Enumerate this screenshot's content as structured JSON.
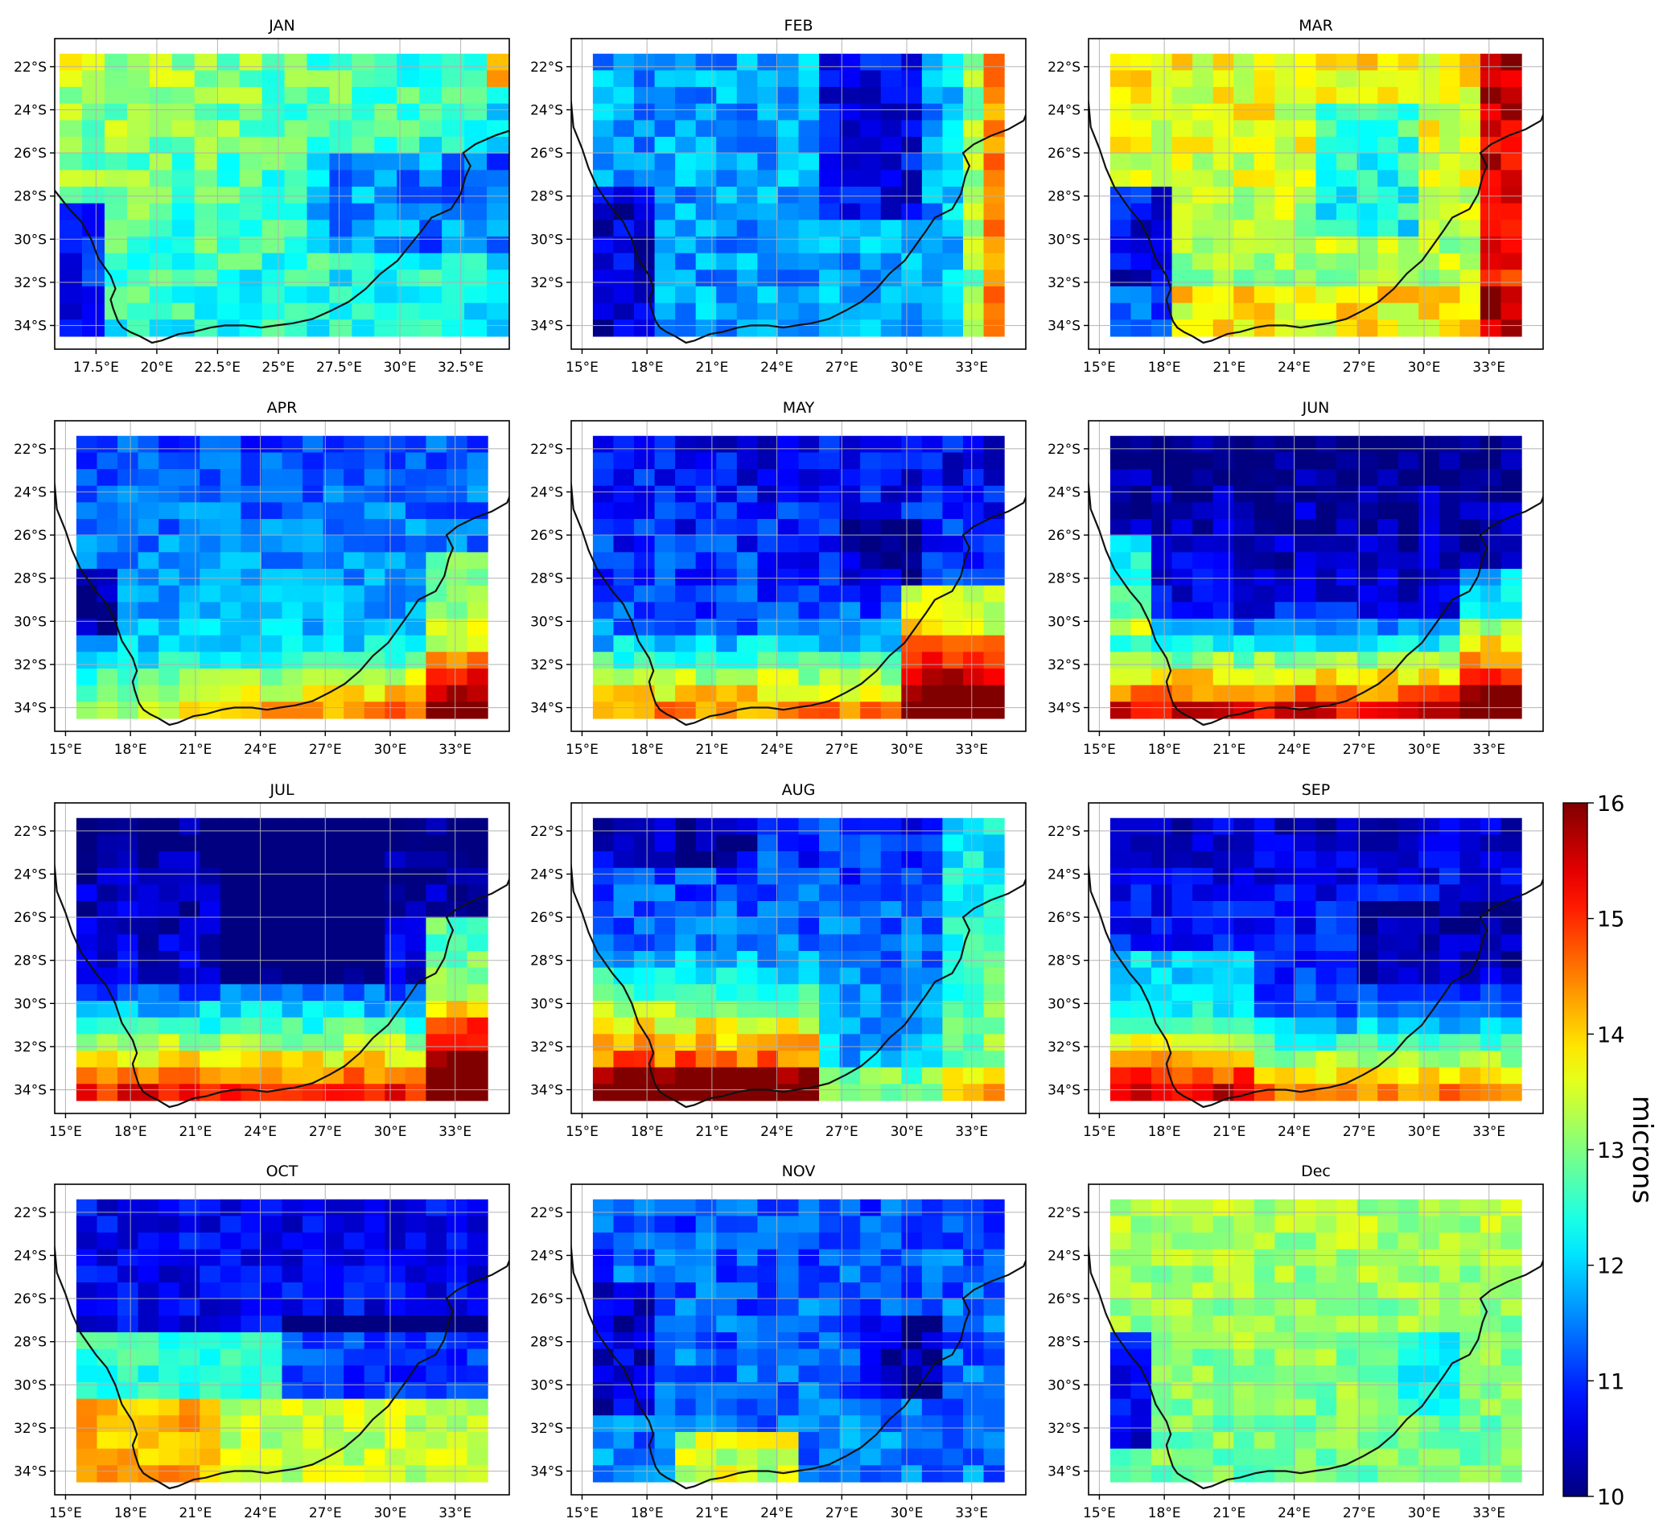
{
  "chart_data": {
    "type": "heatmap",
    "colorbar": {
      "label": "microns",
      "min": 10,
      "max": 16,
      "ticks": [
        10,
        11,
        12,
        13,
        14,
        15,
        16
      ],
      "colormap": "jet"
    },
    "grid_on": true,
    "panels": [
      {
        "title": "JAN",
        "xlim": [
          15.8,
          34.5
        ],
        "ylim": [
          -35.1,
          -20.7
        ],
        "xticks": [
          "17.5°E",
          "20°E",
          "22.5°E",
          "25°E",
          "27.5°E",
          "30°E",
          "32.5°E"
        ],
        "yticks": [
          "22°S",
          "24°S",
          "26°S",
          "28°S",
          "30°S",
          "32°S",
          "34°S"
        ],
        "pattern": "jan"
      },
      {
        "title": "FEB",
        "xlim": [
          14.5,
          35.5
        ],
        "ylim": [
          -35.1,
          -20.7
        ],
        "xticks": [
          "15°E",
          "18°E",
          "21°E",
          "24°E",
          "27°E",
          "30°E",
          "33°E"
        ],
        "yticks": [
          "22°S",
          "24°S",
          "26°S",
          "28°S",
          "30°S",
          "32°S",
          "34°S"
        ],
        "pattern": "feb"
      },
      {
        "title": "MAR",
        "xlim": [
          14.5,
          35.5
        ],
        "ylim": [
          -35.1,
          -20.7
        ],
        "xticks": [
          "15°E",
          "18°E",
          "21°E",
          "24°E",
          "27°E",
          "30°E",
          "33°E"
        ],
        "yticks": [
          "22°S",
          "24°S",
          "26°S",
          "28°S",
          "30°S",
          "32°S",
          "34°S"
        ],
        "pattern": "mar"
      },
      {
        "title": "APR",
        "xlim": [
          14.5,
          35.5
        ],
        "ylim": [
          -35.1,
          -20.7
        ],
        "xticks": [
          "15°E",
          "18°E",
          "21°E",
          "24°E",
          "27°E",
          "30°E",
          "33°E"
        ],
        "yticks": [
          "22°S",
          "24°S",
          "26°S",
          "28°S",
          "30°S",
          "32°S",
          "34°S"
        ],
        "pattern": "apr"
      },
      {
        "title": "MAY",
        "xlim": [
          14.5,
          35.5
        ],
        "ylim": [
          -35.1,
          -20.7
        ],
        "xticks": [
          "15°E",
          "18°E",
          "21°E",
          "24°E",
          "27°E",
          "30°E",
          "33°E"
        ],
        "yticks": [
          "22°S",
          "24°S",
          "26°S",
          "28°S",
          "30°S",
          "32°S",
          "34°S"
        ],
        "pattern": "may"
      },
      {
        "title": "JUN",
        "xlim": [
          14.5,
          35.5
        ],
        "ylim": [
          -35.1,
          -20.7
        ],
        "xticks": [
          "15°E",
          "18°E",
          "21°E",
          "24°E",
          "27°E",
          "30°E",
          "33°E"
        ],
        "yticks": [
          "22°S",
          "24°S",
          "26°S",
          "28°S",
          "30°S",
          "32°S",
          "34°S"
        ],
        "pattern": "jun"
      },
      {
        "title": "JUL",
        "xlim": [
          14.5,
          35.5
        ],
        "ylim": [
          -35.1,
          -20.7
        ],
        "xticks": [
          "15°E",
          "18°E",
          "21°E",
          "24°E",
          "27°E",
          "30°E",
          "33°E"
        ],
        "yticks": [
          "22°S",
          "24°S",
          "26°S",
          "28°S",
          "30°S",
          "32°S",
          "34°S"
        ],
        "pattern": "jul"
      },
      {
        "title": "AUG",
        "xlim": [
          14.5,
          35.5
        ],
        "ylim": [
          -35.1,
          -20.7
        ],
        "xticks": [
          "15°E",
          "18°E",
          "21°E",
          "24°E",
          "27°E",
          "30°E",
          "33°E"
        ],
        "yticks": [
          "22°S",
          "24°S",
          "26°S",
          "28°S",
          "30°S",
          "32°S",
          "34°S"
        ],
        "pattern": "aug"
      },
      {
        "title": "SEP",
        "xlim": [
          14.5,
          35.5
        ],
        "ylim": [
          -35.1,
          -20.7
        ],
        "xticks": [
          "15°E",
          "18°E",
          "21°E",
          "24°E",
          "27°E",
          "30°E",
          "33°E"
        ],
        "yticks": [
          "22°S",
          "24°S",
          "26°S",
          "28°S",
          "30°S",
          "32°S",
          "34°S"
        ],
        "pattern": "sep"
      },
      {
        "title": "OCT",
        "xlim": [
          14.5,
          35.5
        ],
        "ylim": [
          -35.1,
          -20.7
        ],
        "xticks": [
          "15°E",
          "18°E",
          "21°E",
          "24°E",
          "27°E",
          "30°E",
          "33°E"
        ],
        "yticks": [
          "22°S",
          "24°S",
          "26°S",
          "28°S",
          "30°S",
          "32°S",
          "34°S"
        ],
        "pattern": "oct"
      },
      {
        "title": "NOV",
        "xlim": [
          14.5,
          35.5
        ],
        "ylim": [
          -35.1,
          -20.7
        ],
        "xticks": [
          "15°E",
          "18°E",
          "21°E",
          "24°E",
          "27°E",
          "30°E",
          "33°E"
        ],
        "yticks": [
          "22°S",
          "24°S",
          "26°S",
          "28°S",
          "30°S",
          "32°S",
          "34°S"
        ],
        "pattern": "nov"
      },
      {
        "title": "Dec",
        "xlim": [
          14.5,
          35.5
        ],
        "ylim": [
          -35.1,
          -20.7
        ],
        "xticks": [
          "15°E",
          "18°E",
          "21°E",
          "24°E",
          "27°E",
          "30°E",
          "33°E"
        ],
        "yticks": [
          "22°S",
          "24°S",
          "26°S",
          "28°S",
          "30°S",
          "32°S",
          "34°S"
        ],
        "pattern": "dec"
      }
    ]
  }
}
